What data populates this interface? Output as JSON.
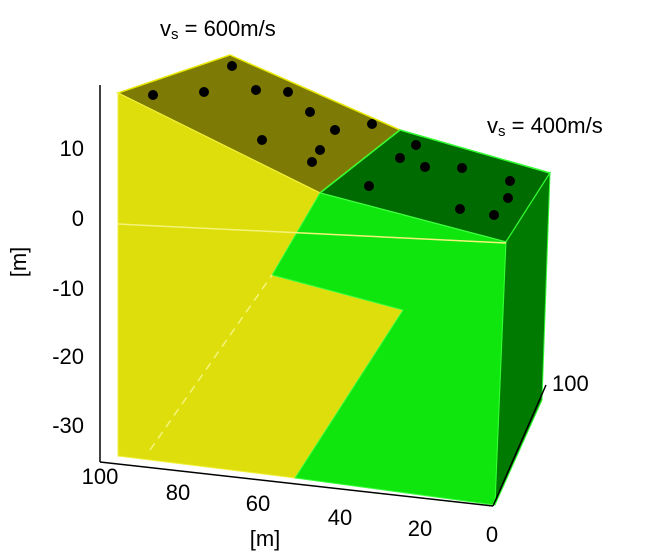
{
  "layer_labels": [
    {
      "symbol": "v",
      "subscript": "s",
      "text": " = 600m/s"
    },
    {
      "symbol": "v",
      "subscript": "s",
      "text": " = 400m/s"
    }
  ],
  "vertical_axis": {
    "label": "[m]",
    "ticks": [
      "10",
      "0",
      "-10",
      "-20",
      "-30"
    ]
  },
  "horizontal_axis": {
    "label": "[m]",
    "ticks": [
      "100",
      "80",
      "60",
      "40",
      "20",
      "0"
    ]
  },
  "depth_axis": {
    "ticks": [
      "100"
    ]
  }
}
